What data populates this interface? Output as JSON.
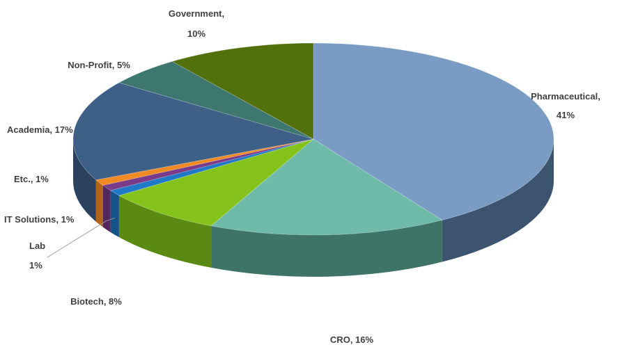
{
  "chart_data": {
    "type": "pie",
    "style": "3d-tilted",
    "title": "",
    "slices": [
      {
        "name": "Pharmaceutical",
        "value": 41,
        "label": "41%",
        "color": "#7a9cc4",
        "side": "#3d5470"
      },
      {
        "name": "CRO",
        "value": 16,
        "label": "16%",
        "color": "#6fbaa8",
        "side": "#3e7468"
      },
      {
        "name": "Biotech",
        "value": 8,
        "label": "8%",
        "color": "#86c21c",
        "side": "#5a8a12"
      },
      {
        "name": "Lab",
        "value": 1,
        "label": "1%",
        "color": "#1f78c8",
        "side": "#145287"
      },
      {
        "name": "IT Solutions",
        "value": 1,
        "label": "1%",
        "color": "#7a3b8a",
        "side": "#52275c"
      },
      {
        "name": "Etc.",
        "value": 1,
        "label": "1%",
        "color": "#f08a24",
        "side": "#b0641a"
      },
      {
        "name": "Academia",
        "value": 17,
        "label": "17%",
        "color": "#3e5f86",
        "side": "#2a4260"
      },
      {
        "name": "Non-Profit",
        "value": 5,
        "label": "5%",
        "color": "#3e7770",
        "side": "#2a524d"
      },
      {
        "name": "Government",
        "value": 10,
        "label": "10%",
        "color": "#52700c",
        "side": "#384d08"
      }
    ],
    "legend": "none"
  }
}
